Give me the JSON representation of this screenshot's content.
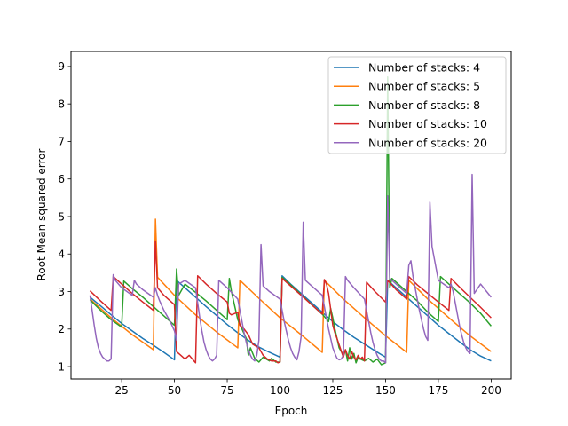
{
  "chart_data": {
    "type": "line",
    "title": "",
    "xlabel": "Epoch",
    "ylabel": "Root Mean squared error",
    "xlim": [
      1,
      209.5
    ],
    "ylim": [
      0.67,
      9.4
    ],
    "xticks": [
      25,
      50,
      75,
      100,
      125,
      150,
      175,
      200
    ],
    "yticks": [
      1,
      2,
      3,
      4,
      5,
      6,
      7,
      8,
      9
    ],
    "grid": false,
    "legend_position": "top-right",
    "series": [
      {
        "name": "Number of stacks: 4",
        "color": "#1f77b4",
        "x": [
          10,
          15,
          20,
          25,
          30,
          35,
          40,
          45,
          50,
          51,
          55,
          60,
          65,
          70,
          75,
          80,
          85,
          90,
          95,
          100,
          101,
          105,
          110,
          115,
          120,
          125,
          130,
          135,
          140,
          145,
          150,
          151,
          155,
          160,
          165,
          170,
          175,
          180,
          185,
          190,
          195,
          200
        ],
        "y": [
          2.85,
          2.62,
          2.38,
          2.15,
          1.95,
          1.75,
          1.57,
          1.38,
          1.18,
          3.3,
          3.1,
          2.85,
          2.6,
          2.36,
          2.12,
          1.9,
          1.7,
          1.52,
          1.38,
          1.25,
          3.42,
          3.2,
          2.95,
          2.7,
          2.45,
          2.2,
          1.98,
          1.78,
          1.6,
          1.42,
          1.25,
          3.3,
          3.1,
          2.85,
          2.6,
          2.35,
          2.1,
          1.88,
          1.66,
          1.45,
          1.28,
          1.15
        ]
      },
      {
        "name": "Number of stacks: 5",
        "color": "#ff7f0e",
        "x": [
          10,
          20,
          30,
          40,
          41,
          42,
          50,
          60,
          70,
          80,
          81,
          90,
          100,
          110,
          120,
          121,
          130,
          140,
          150,
          160,
          161,
          170,
          180,
          190,
          200
        ],
        "y": [
          2.8,
          2.3,
          1.85,
          1.45,
          4.93,
          3.38,
          2.9,
          2.38,
          1.92,
          1.5,
          3.3,
          2.82,
          2.3,
          1.85,
          1.38,
          3.3,
          2.8,
          2.3,
          1.82,
          1.38,
          3.3,
          2.8,
          2.3,
          1.82,
          1.4
        ]
      },
      {
        "name": "Number of stacks: 8",
        "color": "#2ca02c",
        "x": [
          10,
          15,
          20,
          25,
          26,
          30,
          35,
          40,
          45,
          50,
          51,
          52,
          55,
          60,
          65,
          70,
          75,
          76,
          77,
          78,
          79,
          80,
          82,
          84,
          85,
          86,
          88,
          90,
          92,
          95,
          96,
          98,
          100,
          101,
          105,
          110,
          115,
          120,
          123,
          124,
          125,
          126,
          127,
          128,
          130,
          131,
          132,
          133,
          134,
          135,
          136,
          137,
          138,
          140,
          142,
          144,
          146,
          148,
          150,
          151,
          152,
          153,
          155,
          160,
          165,
          170,
          175,
          176,
          180,
          185,
          190,
          195,
          200
        ],
        "y": [
          2.78,
          2.5,
          2.25,
          2.05,
          3.28,
          3.08,
          2.85,
          2.6,
          2.35,
          2.1,
          3.6,
          2.9,
          3.2,
          2.98,
          2.75,
          2.5,
          2.25,
          3.35,
          3.0,
          2.75,
          2.5,
          2.25,
          2.0,
          1.75,
          1.3,
          1.5,
          1.22,
          1.12,
          1.25,
          1.15,
          1.22,
          1.12,
          1.12,
          3.38,
          3.18,
          2.92,
          2.65,
          2.4,
          2.2,
          2.55,
          2.3,
          2.0,
          1.75,
          1.5,
          1.3,
          1.45,
          1.15,
          1.5,
          1.2,
          1.35,
          1.1,
          1.25,
          1.2,
          1.15,
          1.22,
          1.12,
          1.2,
          1.05,
          1.1,
          8.72,
          3.1,
          3.35,
          3.25,
          3.0,
          2.75,
          2.45,
          2.2,
          3.4,
          3.2,
          2.95,
          2.7,
          2.42,
          2.08
        ]
      },
      {
        "name": "Number of stacks: 10",
        "color": "#d62728",
        "x": [
          10,
          15,
          20,
          21,
          25,
          30,
          35,
          40,
          41,
          42,
          45,
          50,
          51,
          53,
          55,
          57,
          60,
          61,
          65,
          70,
          75,
          76,
          77,
          80,
          81,
          83,
          85,
          87,
          90,
          92,
          94,
          96,
          98,
          99,
          100,
          101,
          105,
          110,
          115,
          120,
          121,
          122,
          123,
          125,
          126,
          127,
          130,
          131,
          132,
          133,
          134,
          135,
          136,
          137,
          138,
          139,
          140,
          141,
          145,
          150,
          151,
          155,
          160,
          161,
          165,
          170,
          175,
          180,
          181,
          185,
          190,
          195,
          200
        ],
        "y": [
          3.02,
          2.75,
          2.5,
          3.4,
          3.2,
          2.95,
          2.72,
          2.5,
          4.35,
          3.1,
          2.9,
          2.65,
          1.4,
          1.3,
          1.2,
          1.3,
          1.1,
          3.42,
          3.2,
          2.95,
          2.72,
          2.42,
          2.38,
          2.45,
          2.1,
          2.0,
          1.85,
          1.6,
          1.5,
          1.3,
          1.2,
          1.15,
          1.15,
          1.1,
          1.12,
          3.35,
          3.15,
          2.9,
          2.65,
          2.4,
          3.32,
          3.2,
          2.95,
          2.1,
          1.9,
          1.75,
          1.25,
          1.45,
          1.3,
          1.2,
          1.4,
          1.25,
          1.18,
          1.3,
          1.2,
          1.25,
          1.15,
          3.25,
          3.0,
          2.72,
          3.3,
          3.05,
          2.8,
          3.4,
          3.18,
          2.95,
          2.72,
          2.5,
          3.35,
          3.12,
          2.85,
          2.58,
          2.3
        ]
      },
      {
        "name": "Number of stacks: 20",
        "color": "#9467bd",
        "x": [
          10,
          11,
          12,
          13,
          14,
          15,
          16,
          17,
          18,
          19,
          20,
          21,
          22,
          25,
          30,
          31,
          32,
          35,
          40,
          41,
          42,
          43,
          45,
          48,
          50,
          51,
          52,
          55,
          60,
          61,
          62,
          63,
          64,
          65,
          66,
          67,
          68,
          69,
          70,
          71,
          72,
          75,
          80,
          81,
          82,
          83,
          84,
          85,
          86,
          87,
          88,
          89,
          90,
          91,
          92,
          95,
          100,
          101,
          102,
          103,
          104,
          105,
          106,
          107,
          108,
          109,
          110,
          111,
          112,
          115,
          120,
          121,
          122,
          123,
          124,
          125,
          126,
          127,
          128,
          129,
          130,
          131,
          132,
          135,
          140,
          141,
          142,
          143,
          144,
          145,
          146,
          147,
          148,
          149,
          150,
          151,
          152,
          155,
          160,
          161,
          162,
          163,
          164,
          165,
          166,
          167,
          168,
          169,
          170,
          171,
          172,
          175,
          180,
          181,
          182,
          183,
          184,
          185,
          186,
          187,
          188,
          189,
          190,
          191,
          192,
          195,
          200
        ],
        "y": [
          2.9,
          2.5,
          2.1,
          1.75,
          1.5,
          1.35,
          1.25,
          1.2,
          1.15,
          1.15,
          1.2,
          3.45,
          3.3,
          3.1,
          2.9,
          3.3,
          3.2,
          3.05,
          2.85,
          3.1,
          2.9,
          2.75,
          2.5,
          2.2,
          1.95,
          1.7,
          3.2,
          3.3,
          3.1,
          2.7,
          2.3,
          1.95,
          1.65,
          1.45,
          1.3,
          1.2,
          1.15,
          1.2,
          1.3,
          3.3,
          3.25,
          3.1,
          2.8,
          2.5,
          2.2,
          1.9,
          1.65,
          1.45,
          1.3,
          1.2,
          1.15,
          1.3,
          1.7,
          4.25,
          3.15,
          3.0,
          2.8,
          2.5,
          2.2,
          1.95,
          1.7,
          1.5,
          1.35,
          1.25,
          1.18,
          1.4,
          1.8,
          4.85,
          3.3,
          3.15,
          2.9,
          2.6,
          2.3,
          2.0,
          1.75,
          1.5,
          1.35,
          1.22,
          1.18,
          1.2,
          1.3,
          3.4,
          3.3,
          3.1,
          2.8,
          2.5,
          2.2,
          1.9,
          1.65,
          1.45,
          1.3,
          1.2,
          1.15,
          1.15,
          1.1,
          5.55,
          3.35,
          3.2,
          2.95,
          3.7,
          3.82,
          3.4,
          3.1,
          2.8,
          2.5,
          2.25,
          2.0,
          1.8,
          1.7,
          5.38,
          4.2,
          3.3,
          3.1,
          3.2,
          3.0,
          2.7,
          2.4,
          2.1,
          1.85,
          1.65,
          1.5,
          1.4,
          1.35,
          6.12,
          2.95,
          3.2,
          2.85
        ]
      }
    ]
  }
}
